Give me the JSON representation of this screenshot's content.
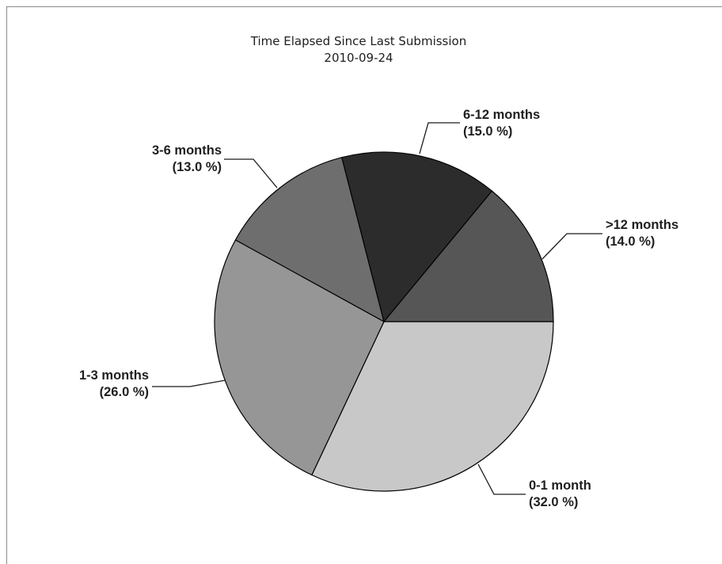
{
  "chart_data": {
    "type": "pie",
    "title": "Time Elapsed Since Last Submission",
    "subtitle": "2010-09-24",
    "slices": [
      {
        "label": "0-1 month",
        "value": 32.0,
        "percent_text": "(32.0 %)",
        "color": "#c8c8c8"
      },
      {
        "label": "1-3 months",
        "value": 26.0,
        "percent_text": "(26.0 %)",
        "color": "#969696"
      },
      {
        "label": "3-6 months",
        "value": 13.0,
        "percent_text": "(13.0 %)",
        "color": "#6e6e6e"
      },
      {
        "label": "6-12 months",
        "value": 15.0,
        "percent_text": "(15.0 %)",
        "color": "#2c2c2c"
      },
      {
        "label": ">12 months",
        "value": 14.0,
        "percent_text": "(14.0 %)",
        "color": "#565656"
      }
    ]
  }
}
